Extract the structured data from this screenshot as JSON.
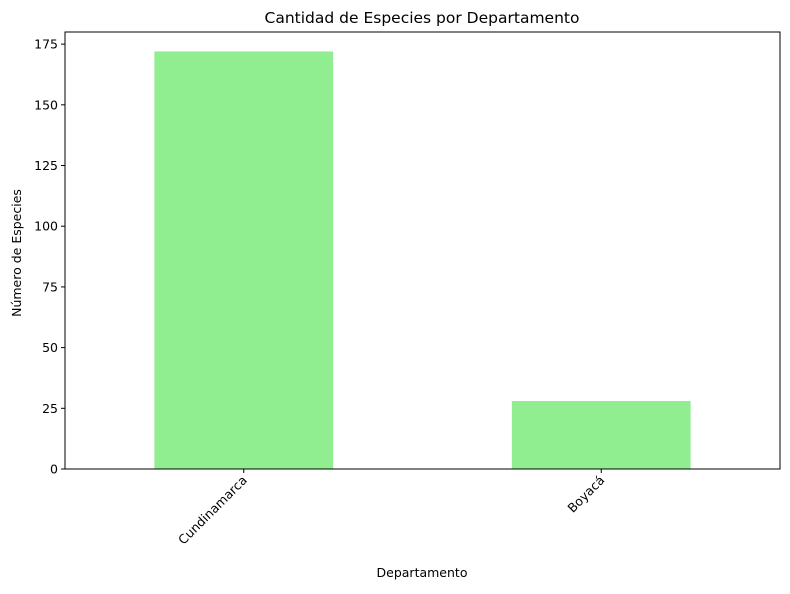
{
  "chart_data": {
    "type": "bar",
    "title": "Cantidad de Especies por Departamento",
    "xlabel": "Departamento",
    "ylabel": "Número de Especies",
    "categories": [
      "Cundinamarca",
      "Boyacá"
    ],
    "values": [
      172,
      28
    ],
    "ylim": [
      0,
      180
    ],
    "yticks": [
      0,
      25,
      50,
      75,
      100,
      125,
      150,
      175
    ],
    "xtick_rotation_deg": 45,
    "grid": false,
    "legend": "none",
    "colors": {
      "bar": "#90ee90",
      "axis": "#000000",
      "background": "#ffffff"
    }
  }
}
